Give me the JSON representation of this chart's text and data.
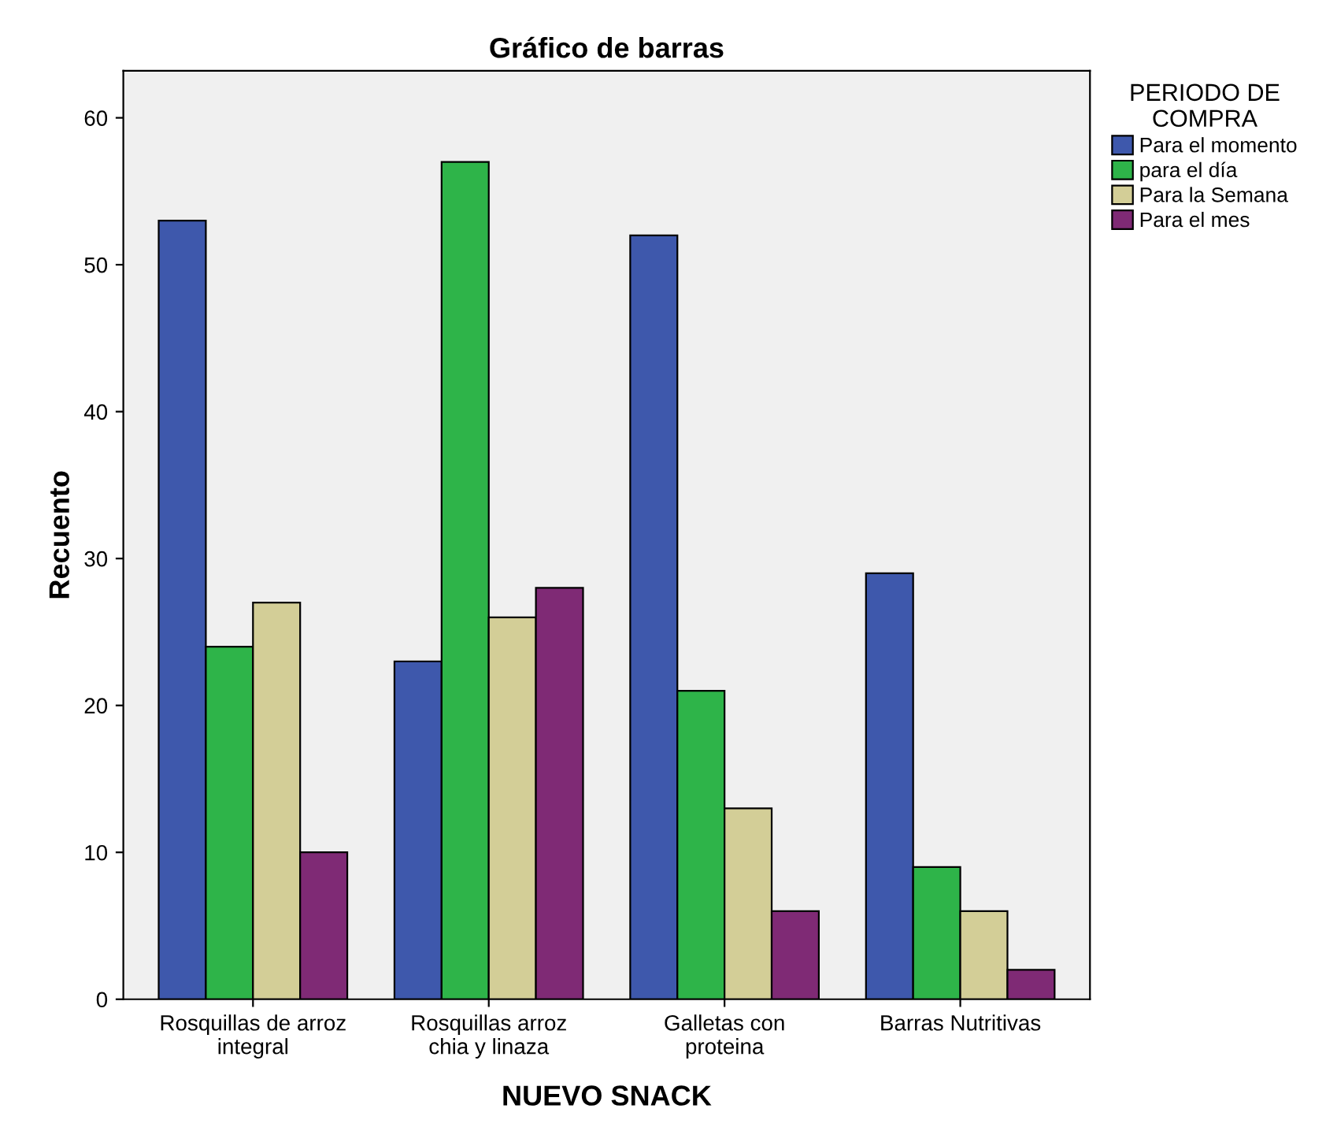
{
  "chart_data": {
    "type": "bar",
    "title": "Gráfico de barras",
    "xlabel": "NUEVO SNACK",
    "ylabel": "Recuento",
    "legend_title": "PERIODO DE\nCOMPRA",
    "categories": [
      "Rosquillas de arroz\nintegral",
      "Rosquillas arroz\nchia y linaza",
      "Galletas con\nproteina",
      "Barras Nutritivas"
    ],
    "series": [
      {
        "name": "Para el momento",
        "color": "#3e58ac",
        "values": [
          53,
          23,
          52,
          29
        ]
      },
      {
        "name": "para el día",
        "color": "#2eb449",
        "values": [
          24,
          57,
          21,
          9
        ]
      },
      {
        "name": "Para la Semana",
        "color": "#d3ce97",
        "values": [
          27,
          26,
          13,
          6
        ]
      },
      {
        "name": "Para el mes",
        "color": "#7f2a75",
        "values": [
          10,
          28,
          6,
          2
        ]
      }
    ],
    "ylim": [
      0,
      63.2
    ],
    "yticks": [
      0,
      10,
      20,
      30,
      40,
      50,
      60
    ],
    "grid": false,
    "legend": "top right"
  }
}
